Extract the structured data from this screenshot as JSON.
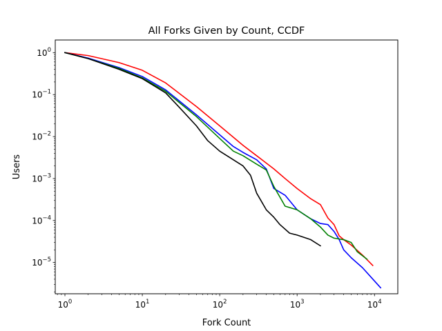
{
  "chart_data": {
    "type": "line",
    "title": "All Forks Given by Count, CCDF",
    "xlabel": "Fork Count",
    "ylabel": "Users",
    "xscale": "log",
    "yscale": "log",
    "xlim": [
      0.75,
      20000
    ],
    "ylim": [
      1.8e-06,
      2.0
    ],
    "grid": false,
    "x_ticks": [
      {
        "value": 1,
        "base": "10",
        "exp": "0"
      },
      {
        "value": 10,
        "base": "10",
        "exp": "1"
      },
      {
        "value": 100,
        "base": "10",
        "exp": "2"
      },
      {
        "value": 1000,
        "base": "10",
        "exp": "3"
      },
      {
        "value": 10000,
        "base": "10",
        "exp": "4"
      }
    ],
    "y_ticks": [
      {
        "value": 1,
        "base": "10",
        "exp": "0"
      },
      {
        "value": 0.1,
        "base": "10",
        "exp": "−1"
      },
      {
        "value": 0.01,
        "base": "10",
        "exp": "−2"
      },
      {
        "value": 0.001,
        "base": "10",
        "exp": "−3"
      },
      {
        "value": 0.0001,
        "base": "10",
        "exp": "−4"
      },
      {
        "value": 1e-05,
        "base": "10",
        "exp": "−5"
      }
    ],
    "series": [
      {
        "color": "#ff0000",
        "x": [
          1,
          2,
          5,
          10,
          20,
          50,
          100,
          200,
          300,
          500,
          700,
          1000,
          1500,
          2000,
          2500,
          3000,
          3500,
          4000,
          5000,
          7000,
          9500
        ],
        "y": [
          1.0,
          0.85,
          0.58,
          0.38,
          0.19,
          0.052,
          0.018,
          0.0062,
          0.0035,
          0.0017,
          0.001,
          0.00058,
          0.00033,
          0.00024,
          0.000115,
          8e-05,
          4.3e-05,
          3.5e-05,
          2.6e-05,
          1.5e-05,
          8.5e-06
        ]
      },
      {
        "color": "#0000ff",
        "x": [
          1,
          2,
          5,
          10,
          20,
          50,
          100,
          150,
          200,
          300,
          400,
          500,
          700,
          1000,
          1500,
          2000,
          2500,
          3000,
          3500,
          4000,
          5000,
          7000,
          9000,
          12000
        ],
        "y": [
          1.0,
          0.74,
          0.44,
          0.27,
          0.13,
          0.033,
          0.011,
          0.0058,
          0.0042,
          0.0028,
          0.0017,
          0.00058,
          0.0004,
          0.00018,
          0.00011,
          8.5e-05,
          8e-05,
          5.5e-05,
          3.5e-05,
          2e-05,
          1.3e-05,
          7.5e-06,
          4.5e-06,
          2.5e-06
        ]
      },
      {
        "color": "#008000",
        "x": [
          1,
          2,
          5,
          10,
          20,
          50,
          100,
          150,
          200,
          300,
          400,
          500,
          700,
          1000,
          1500,
          2000,
          2500,
          3000,
          4000,
          5000,
          6000,
          8000
        ],
        "y": [
          1.0,
          0.72,
          0.42,
          0.25,
          0.12,
          0.03,
          0.009,
          0.0045,
          0.0035,
          0.0022,
          0.0016,
          0.00065,
          0.00022,
          0.00018,
          0.00011,
          7e-05,
          4.5e-05,
          3.8e-05,
          3.5e-05,
          3e-05,
          1.8e-05,
          1.2e-05
        ]
      },
      {
        "color": "#000000",
        "x": [
          1,
          2,
          5,
          10,
          20,
          30,
          50,
          70,
          100,
          150,
          200,
          250,
          300,
          400,
          500,
          600,
          800,
          1000,
          1500,
          2000
        ],
        "y": [
          1.0,
          0.72,
          0.4,
          0.24,
          0.11,
          0.05,
          0.018,
          0.008,
          0.0045,
          0.0028,
          0.002,
          0.0012,
          0.00045,
          0.00018,
          0.00012,
          8e-05,
          5e-05,
          4.5e-05,
          3.5e-05,
          2.5e-05
        ]
      }
    ]
  }
}
